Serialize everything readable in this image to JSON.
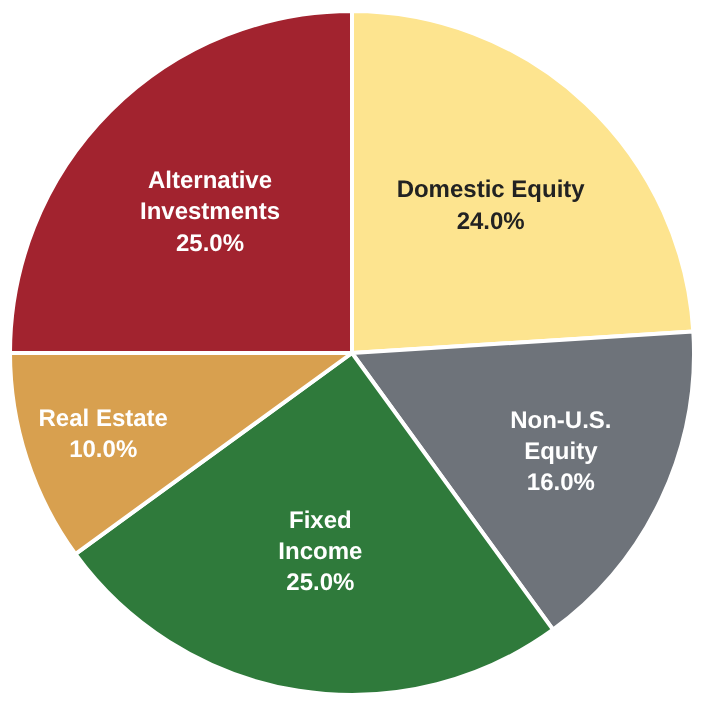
{
  "chart_data": {
    "type": "pie",
    "categories": [
      "Domestic Equity",
      "Non-U.S.\nEquity",
      "Fixed\nIncome",
      "Real Estate",
      "Alternative\nInvestments"
    ],
    "values": [
      24,
      16,
      25,
      10,
      25
    ],
    "value_labels": [
      "24.0%",
      "16.0%",
      "25.0%",
      "10.0%",
      "25.0%"
    ],
    "colors": [
      "#fde48f",
      "#6e737a",
      "#2f7a3b",
      "#d8a04f",
      "#a2232f"
    ],
    "legend": false
  }
}
